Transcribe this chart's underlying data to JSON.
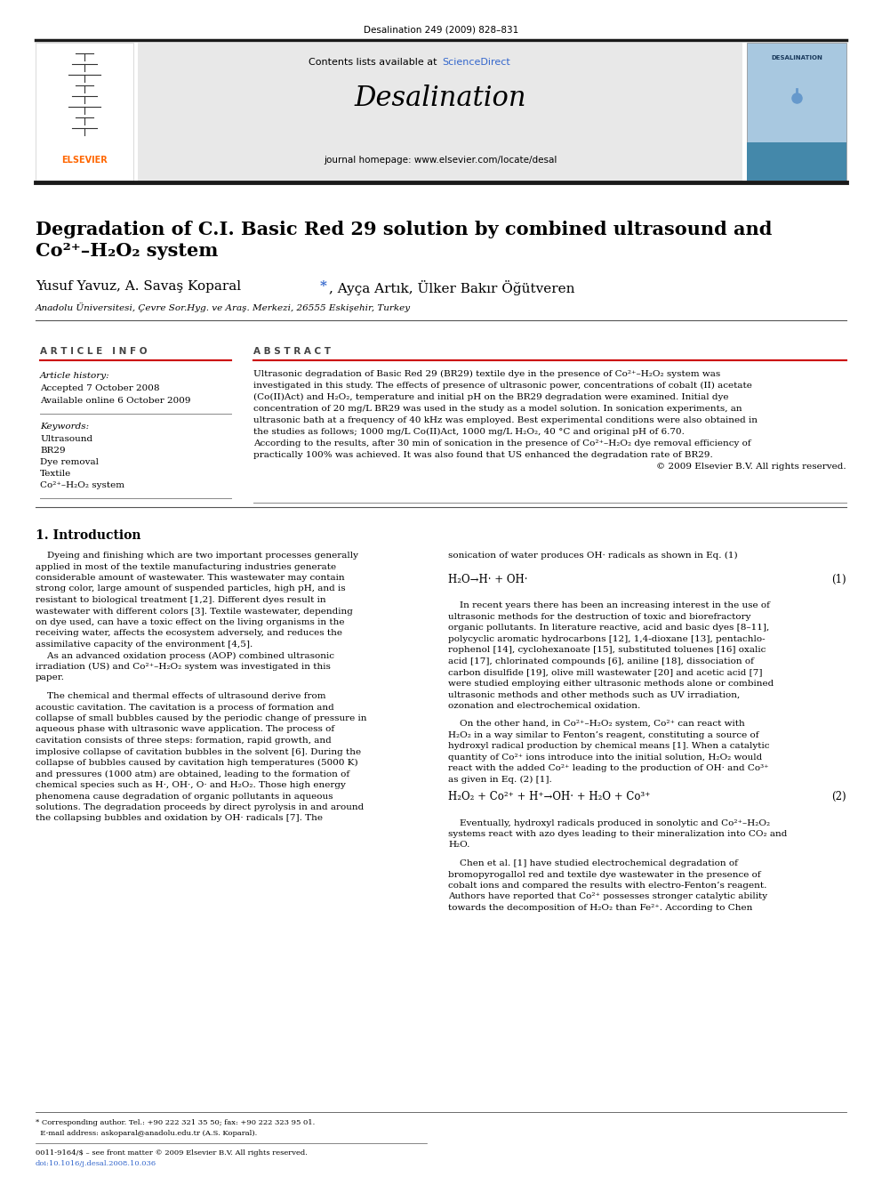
{
  "page_width": 9.92,
  "page_height": 13.23,
  "background_color": "#ffffff",
  "top_citation": "Desalination 249 (2009) 828–831",
  "journal_name": "Desalination",
  "contents_line_plain": "Contents lists available at ",
  "contents_line_blue": "ScienceDirect",
  "journal_homepage": "journal homepage: www.elsevier.com/locate/desal",
  "elsevier_text": "ELSEVIER",
  "title_line1": "Degradation of C.I. Basic Red 29 solution by combined ultrasound and",
  "title_line2": "Co²⁺–H₂O₂ system",
  "authors_plain": "Yusuf Yavuz, A. Savaş Koparal ",
  "authors_star": "*",
  "authors_rest": ", Ayça Artık, Ülker Bakır Öğütveren",
  "affiliation": "Anadolu Üniversitesi, Çevre Sor.Hyg. ve Araş. Merkezi, 26555 Eskişehir, Turkey",
  "article_info_header": "A R T I C L E   I N F O",
  "article_history_label": "Article history:",
  "accepted_date": "Accepted 7 October 2008",
  "available_online": "Available online 6 October 2009",
  "keywords_label": "Keywords:",
  "keywords": [
    "Ultrasound",
    "BR29",
    "Dye removal",
    "Textile",
    "Co²⁺–H₂O₂ system"
  ],
  "abstract_header": "A B S T R A C T",
  "abstract_lines": [
    "Ultrasonic degradation of Basic Red 29 (BR29) textile dye in the presence of Co²⁺–H₂O₂ system was",
    "investigated in this study. The effects of presence of ultrasonic power, concentrations of cobalt (II) acetate",
    "(Co(II)Act) and H₂O₂, temperature and initial pH on the BR29 degradation were examined. Initial dye",
    "concentration of 20 mg/L BR29 was used in the study as a model solution. In sonication experiments, an",
    "ultrasonic bath at a frequency of 40 kHz was employed. Best experimental conditions were also obtained in",
    "the studies as follows; 1000 mg/L Co(II)Act, 1000 mg/L H₂O₂, 40 °C and original pH of 6.70.",
    "According to the results, after 30 min of sonication in the presence of Co²⁺–H₂O₂ dye removal efficiency of",
    "practically 100% was achieved. It was also found that US enhanced the degradation rate of BR29.",
    "© 2009 Elsevier B.V. All rights reserved."
  ],
  "section1_header": "1. Introduction",
  "col1_para1": [
    "    Dyeing and finishing which are two important processes generally",
    "applied in most of the textile manufacturing industries generate",
    "considerable amount of wastewater. This wastewater may contain",
    "strong color, large amount of suspended particles, high pH, and is",
    "resistant to biological treatment [1,2]. Different dyes result in",
    "wastewater with different colors [3]. Textile wastewater, depending",
    "on dye used, can have a toxic effect on the living organisms in the",
    "receiving water, affects the ecosystem adversely, and reduces the",
    "assimilative capacity of the environment [4,5].",
    "    As an advanced oxidation process (AOP) combined ultrasonic",
    "irradiation (US) and Co²⁺–H₂O₂ system was investigated in this",
    "paper."
  ],
  "col1_para2": [
    "    The chemical and thermal effects of ultrasound derive from",
    "acoustic cavitation. The cavitation is a process of formation and",
    "collapse of small bubbles caused by the periodic change of pressure in",
    "aqueous phase with ultrasonic wave application. The process of",
    "cavitation consists of three steps: formation, rapid growth, and",
    "implosive collapse of cavitation bubbles in the solvent [6]. During the",
    "collapse of bubbles caused by cavitation high temperatures (5000 K)",
    "and pressures (1000 atm) are obtained, leading to the formation of",
    "chemical species such as H·, OH·, O· and H₂O₂. Those high energy",
    "phenomena cause degradation of organic pollutants in aqueous",
    "solutions. The degradation proceeds by direct pyrolysis in and around",
    "the collapsing bubbles and oxidation by OH· radicals [7]. The"
  ],
  "col2_intro": "sonication of water produces OH· radicals as shown in Eq. (1)",
  "eq1_lhs": "H₂O→H· + OH·",
  "eq1_rhs": "(1)",
  "col2_para2": [
    "    In recent years there has been an increasing interest in the use of",
    "ultrasonic methods for the destruction of toxic and biorefractory",
    "organic pollutants. In literature reactive, acid and basic dyes [8–11],",
    "polycyclic aromatic hydrocarbons [12], 1,4-dioxane [13], pentachlo-",
    "rophenol [14], cyclohexanoate [15], substituted toluenes [16] oxalic",
    "acid [17], chlorinated compounds [6], aniline [18], dissociation of",
    "carbon disulfide [19], olive mill wastewater [20] and acetic acid [7]",
    "were studied employing either ultrasonic methods alone or combined",
    "ultrasonic methods and other methods such as UV irradiation,",
    "ozonation and electrochemical oxidation."
  ],
  "col2_para3": [
    "    On the other hand, in Co²⁺–H₂O₂ system, Co²⁺ can react with",
    "H₂O₂ in a way similar to Fenton’s reagent, constituting a source of",
    "hydroxyl radical production by chemical means [1]. When a catalytic",
    "quantity of Co²⁺ ions introduce into the initial solution, H₂O₂ would",
    "react with the added Co²⁺ leading to the production of OH· and Co³⁺",
    "as given in Eq. (2) [1]."
  ],
  "eq2_lhs": "H₂O₂ + Co²⁺ + H⁺→OH· + H₂O + Co³⁺",
  "eq2_rhs": "(2)",
  "col2_para4": [
    "    Eventually, hydroxyl radicals produced in sonolytic and Co²⁺–H₂O₂",
    "systems react with azo dyes leading to their mineralization into CO₂ and",
    "H₂O."
  ],
  "col2_para5": [
    "    Chen et al. [1] have studied electrochemical degradation of",
    "bromopyrogallol red and textile dye wastewater in the presence of",
    "cobalt ions and compared the results with electro-Fenton’s reagent.",
    "Authors have reported that Co²⁺ possesses stronger catalytic ability",
    "towards the decomposition of H₂O₂ than Fe²⁺. According to Chen"
  ],
  "footer_note": "* Corresponding author. Tel.: +90 222 321 35 50; fax: +90 222 323 95 01.",
  "footer_email": "  E-mail address: askoparal@anadolu.edu.tr (A.S. Koparal).",
  "footer_issn": "0011-9164/$ – see front matter © 2009 Elsevier B.V. All rights reserved.",
  "footer_doi": "doi:10.1016/j.desal.2008.10.036",
  "bar_color": "#1a1a1a",
  "red_line_color": "#cc0000",
  "blue_color": "#3366cc",
  "orange_color": "#ff6600",
  "header_bg": "#e8e8e8",
  "cover_bg": "#a8c8e0"
}
